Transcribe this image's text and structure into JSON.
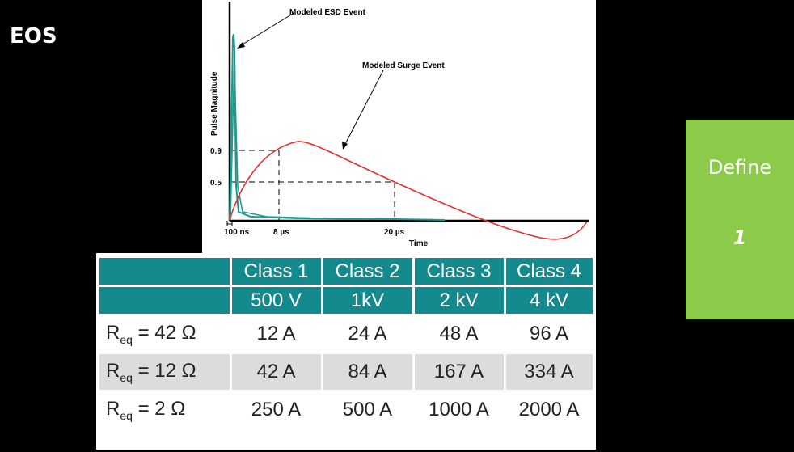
{
  "slide": {
    "title": "EOS"
  },
  "figure": {
    "labels": {
      "esd_event": "Modeled ESD Event",
      "surge_event": "Modeled Surge Event",
      "y_axis": "Pulse Magnitude",
      "x_axis": "Time",
      "y_tick_09": "0.9",
      "y_tick_05": "0.5",
      "x_tick_100ns": "100 ns",
      "x_tick_8us": "8 µs",
      "x_tick_20us": "20 µs"
    },
    "colors": {
      "surge": "#e0302c",
      "esd": "#1a9a8e",
      "axis": "#000000"
    }
  },
  "table": {
    "header_row1": [
      "Class 1",
      "Class 2",
      "Class 3",
      "Class 4"
    ],
    "header_row2": [
      "500 V",
      "1kV",
      "2 kV",
      "4 kV"
    ],
    "rows": [
      {
        "r": "R",
        "sub": "eq",
        "eq": " = 42 Ω",
        "values": [
          "12 A",
          "24 A",
          "48 A",
          "96 A"
        ]
      },
      {
        "r": "R",
        "sub": "eq",
        "eq": " = 12 Ω",
        "values": [
          "42 A",
          "84 A",
          "167 A",
          "334 A"
        ]
      },
      {
        "r": "R",
        "sub": "eq",
        "eq": " = 2 Ω",
        "values": [
          "250 A",
          "500 A",
          "1000 A",
          "2000 A"
        ]
      }
    ],
    "colors": {
      "header": "#158a8e",
      "shade": "#dcdcdc"
    }
  },
  "define_box": {
    "label": "Define",
    "number": "1",
    "color": "#8ccb4a"
  }
}
